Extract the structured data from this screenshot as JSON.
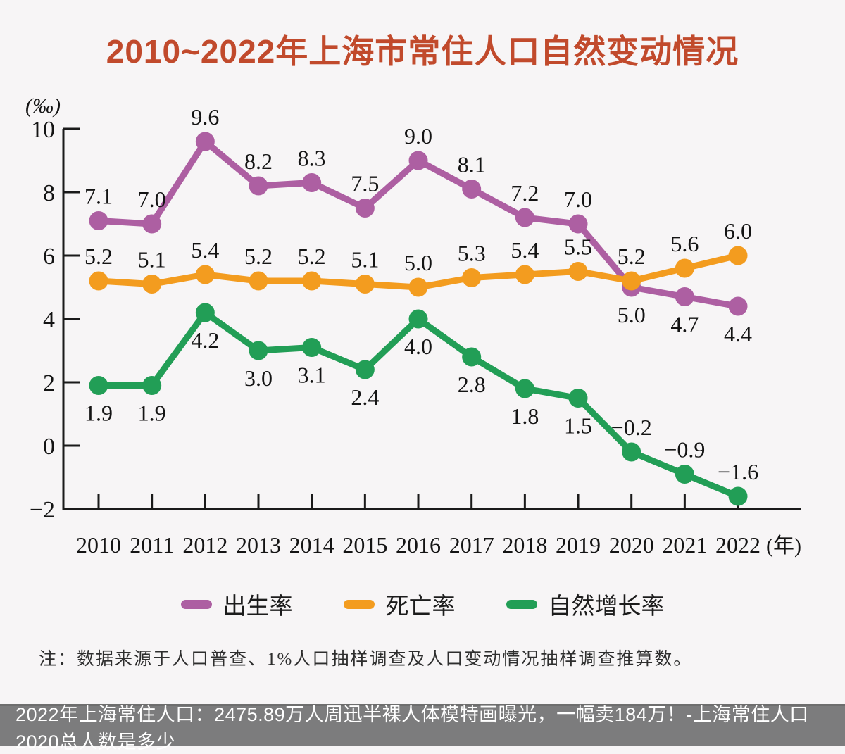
{
  "chart_data": {
    "type": "line",
    "title": "2010~2022年上海市常住人口自然变动情况",
    "title_color": "#c14a2c",
    "y_unit": "(‰)",
    "x_unit": "(年)",
    "x": [
      "2010",
      "2011",
      "2012",
      "2013",
      "2014",
      "2015",
      "2016",
      "2017",
      "2018",
      "2019",
      "2020",
      "2021",
      "2022"
    ],
    "yticks": [
      10,
      8,
      6,
      4,
      2,
      0,
      -2
    ],
    "ylim": [
      -2,
      10
    ],
    "grid": false,
    "legend_position": "bottom",
    "axis_color": "#1a1a1a",
    "label_color": "#141414",
    "series": [
      {
        "name": "出生率",
        "color": "#ad5fa2",
        "values": [
          7.1,
          7.0,
          9.6,
          8.2,
          8.3,
          7.5,
          9.0,
          8.1,
          7.2,
          7.0,
          5.0,
          4.7,
          4.4
        ],
        "label_positions": [
          "above",
          "above",
          "above",
          "above",
          "above",
          "above",
          "above",
          "above",
          "above",
          "above",
          "below",
          "below",
          "below"
        ]
      },
      {
        "name": "死亡率",
        "color": "#f39c1f",
        "values": [
          5.2,
          5.1,
          5.4,
          5.2,
          5.2,
          5.1,
          5.0,
          5.3,
          5.4,
          5.5,
          5.2,
          5.6,
          6.0
        ],
        "label_positions": [
          "above",
          "above",
          "above",
          "above",
          "above",
          "above",
          "above",
          "above",
          "above",
          "above",
          "above",
          "above",
          "above"
        ]
      },
      {
        "name": "自然增长率",
        "color": "#229e56",
        "values": [
          1.9,
          1.9,
          4.2,
          3.0,
          3.1,
          2.4,
          4.0,
          2.8,
          1.8,
          1.5,
          -0.2,
          -0.9,
          -1.6
        ],
        "label_positions": [
          "below",
          "below",
          "below",
          "below",
          "below",
          "below",
          "below",
          "below",
          "below",
          "below",
          "above",
          "above",
          "above"
        ]
      }
    ]
  },
  "note": "注：数据来源于人口普查、1%人口抽样调查及人口变动情况抽样调查推算数。",
  "caption_bar": {
    "text": "2022年上海常住人口：2475.89万人周迅半裸人体模特画曝光，一幅卖184万！-上海常住人口2020总人数是多少",
    "background": "#7c7c7d",
    "text_color": "#ffffff"
  }
}
